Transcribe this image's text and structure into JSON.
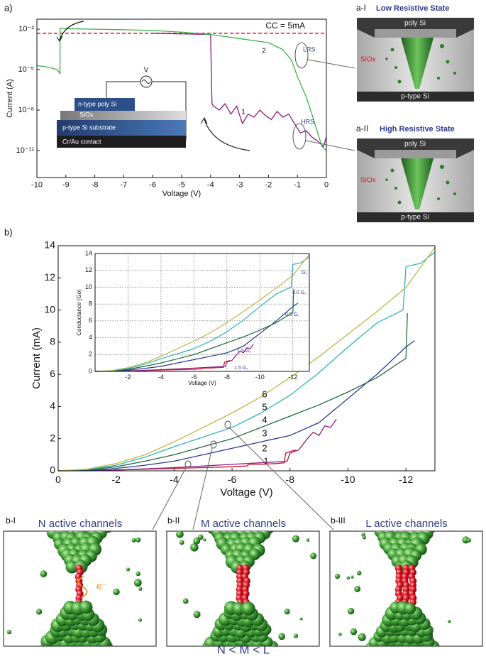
{
  "figure": {
    "panel_a_label": "a)",
    "panel_b_label": "b)"
  },
  "chart_data": [
    {
      "type": "line",
      "log_y": true,
      "xlabel": "Voltage (V)",
      "ylabel": "Current (A)",
      "xlim": [
        -10,
        0
      ],
      "xticks": [
        -10,
        -9,
        -8,
        -7,
        -6,
        -5,
        -4,
        -3,
        -2,
        -1,
        0
      ],
      "ylim": [
        1e-13,
        0.055
      ],
      "yticks": [
        {
          "value": 0.01,
          "label": "10⁻²"
        },
        {
          "value": 1e-05,
          "label": "10⁻⁵"
        },
        {
          "value": 1e-08,
          "label": "10⁻⁸"
        },
        {
          "value": 1e-11,
          "label": "10⁻¹¹"
        }
      ],
      "reference_line": {
        "label": "CC = 5mA",
        "value": 0.005,
        "color": "#e2263c"
      },
      "annotations": [
        "LRS",
        "HRS"
      ],
      "series": [
        {
          "name": "1",
          "color": "#8e1a7e",
          "x": [
            -6,
            -4,
            -3.95,
            -3.9,
            -3.7,
            -3.5,
            -3.3,
            -3.1,
            -2.9,
            -2.7,
            -2.5,
            -2.3,
            -2.1,
            -1.9,
            -1.7,
            -1.5,
            -1.3,
            -1.1,
            -0.9,
            -0.7,
            -0.5,
            -0.3,
            -0.1,
            0
          ],
          "values": [
            0.005,
            0.004,
            3e-08,
            2e-08,
            1e-08,
            3e-08,
            5e-09,
            2e-08,
            1e-09,
            5e-09,
            3e-09,
            1e-08,
            4e-09,
            2e-09,
            8e-09,
            3e-09,
            5e-09,
            1e-09,
            2e-10,
            3e-10,
            1e-10,
            5e-11,
            2e-11,
            1e-10
          ]
        },
        {
          "name": "2",
          "color": "#3bb24a",
          "x": [
            -10,
            -9.6,
            -9.3,
            -9.2,
            -9.2,
            -9,
            -8,
            -7,
            -6,
            -5,
            -4,
            -3,
            -2,
            -1.5,
            -1.2,
            -1,
            -0.7,
            -0.5,
            -0.3,
            -0.15,
            0
          ],
          "values": [
            2e-05,
            1.5e-05,
            1e-05,
            5e-06,
            0.012,
            0.011,
            0.01,
            0.009,
            0.008,
            0.006,
            0.004,
            0.002,
            0.001,
            0.0003,
            5e-05,
            3e-06,
            1e-07,
            5e-09,
            2e-10,
            2e-11,
            1e-11
          ]
        }
      ]
    },
    {
      "type": "line",
      "xlabel": "Voltage (V)",
      "ylabel": "Current (mA)",
      "xlim": [
        0,
        -13
      ],
      "xticks": [
        0,
        -2,
        -4,
        -6,
        -8,
        -10,
        -12
      ],
      "ylim": [
        0,
        14
      ],
      "yticks": [
        0,
        2,
        4,
        6,
        8,
        10,
        12,
        14
      ],
      "series": [
        {
          "name": "1",
          "color": "#d0102e",
          "x": [
            0,
            -2,
            -4,
            -6,
            -6.5,
            -6.6,
            -7,
            -7.5,
            -7.8,
            -7.85,
            -8,
            -8.2
          ],
          "values": [
            0,
            0.05,
            0.15,
            0.25,
            0.3,
            0.4,
            0.4,
            0.45,
            0.5,
            1.1,
            1.2,
            1.3
          ]
        },
        {
          "name": "2",
          "color": "#8e1a7e",
          "x": [
            0,
            -2,
            -4,
            -6,
            -7,
            -7.5,
            -7.9,
            -8,
            -8.3,
            -8.6,
            -8.8,
            -9,
            -9.2,
            -9.4,
            -9.6
          ],
          "values": [
            0,
            0.05,
            0.2,
            0.4,
            0.5,
            0.55,
            0.6,
            1.1,
            1.3,
            2,
            2.4,
            2.2,
            2.8,
            2.7,
            3.2
          ]
        },
        {
          "name": "3",
          "color": "#2b3990",
          "x": [
            0,
            -1,
            -2,
            -3,
            -4,
            -5,
            -6,
            -7,
            -8,
            -9,
            -10,
            -11,
            -12,
            -12.3
          ],
          "values": [
            0,
            0,
            0.15,
            0.35,
            0.6,
            1,
            1.4,
            1.8,
            2.2,
            3,
            4.5,
            6,
            7.7,
            8.1
          ]
        },
        {
          "name": "4",
          "color": "#1e6b3a",
          "x": [
            0,
            -1,
            -2,
            -3,
            -4,
            -5,
            -6,
            -7,
            -8,
            -9,
            -10,
            -11,
            -12,
            -12.05
          ],
          "values": [
            0,
            0.05,
            0.25,
            0.6,
            1,
            1.5,
            2,
            2.7,
            3.4,
            4.1,
            4.9,
            5.8,
            7,
            9.8
          ]
        },
        {
          "name": "5",
          "color": "#2fb4b4",
          "x": [
            0,
            -1,
            -2,
            -3,
            -4,
            -5,
            -6,
            -7,
            -8,
            -9,
            -10,
            -11,
            -11.9,
            -12,
            -12.5,
            -13
          ],
          "values": [
            0,
            0.08,
            0.35,
            0.85,
            1.5,
            2.1,
            2.7,
            3.6,
            4.7,
            6.1,
            7.7,
            9.2,
            10,
            12.7,
            12.9,
            13.6
          ]
        },
        {
          "name": "6",
          "color": "#bdb54a",
          "x": [
            0,
            -1,
            -2,
            -3,
            -4,
            -5,
            -6,
            -7,
            -8,
            -9,
            -10,
            -11,
            -12,
            -13
          ],
          "values": [
            0,
            0.1,
            0.45,
            1,
            1.8,
            2.7,
            3.6,
            4.6,
            5.8,
            7.1,
            8.5,
            9.9,
            11.4,
            13.9
          ]
        }
      ]
    },
    {
      "type": "line",
      "xlabel": "Voltage (V)",
      "ylabel": "Conductance (Go)",
      "grid": true,
      "xlim": [
        0,
        -13
      ],
      "xticks": [
        -2,
        -4,
        -6,
        -8,
        -10,
        -12
      ],
      "ylim": [
        0,
        14
      ],
      "yticks": [
        0,
        2,
        4,
        6,
        8,
        10,
        12,
        14
      ],
      "annotations": [
        "1.5 G₀",
        "1.5 G₀",
        "0.5 G₀",
        "3.0 G₀",
        "G₀"
      ],
      "series": [
        {
          "color": "#d0102e",
          "x": [
            0,
            -2,
            -4,
            -6,
            -6.5,
            -6.6,
            -7,
            -7.5,
            -7.8,
            -7.85,
            -8,
            -8.2
          ],
          "values": [
            0,
            0.05,
            0.15,
            0.25,
            0.3,
            0.4,
            0.4,
            0.45,
            0.5,
            1.1,
            1.2,
            1.3
          ]
        },
        {
          "color": "#8e1a7e",
          "x": [
            0,
            -2,
            -4,
            -6,
            -7,
            -7.5,
            -7.9,
            -8,
            -8.3,
            -8.6,
            -8.8,
            -9,
            -9.2,
            -9.4,
            -9.6
          ],
          "values": [
            0,
            0.05,
            0.2,
            0.4,
            0.5,
            0.55,
            0.6,
            1.1,
            1.3,
            2,
            2.4,
            2.2,
            2.8,
            2.7,
            3.2
          ]
        },
        {
          "color": "#2b3990",
          "x": [
            0,
            -1,
            -2,
            -3,
            -4,
            -5,
            -6,
            -7,
            -8,
            -9,
            -10,
            -11,
            -12,
            -12.3
          ],
          "values": [
            0,
            0,
            0.15,
            0.35,
            0.6,
            1,
            1.4,
            1.8,
            2.2,
            3,
            4.5,
            6,
            7.7,
            8.1
          ]
        },
        {
          "color": "#1e6b3a",
          "x": [
            0,
            -1,
            -2,
            -3,
            -4,
            -5,
            -6,
            -7,
            -8,
            -9,
            -10,
            -11,
            -12,
            -12.05
          ],
          "values": [
            0,
            0.05,
            0.25,
            0.6,
            1,
            1.5,
            2,
            2.7,
            3.4,
            4.1,
            4.9,
            5.8,
            7,
            9.8
          ]
        },
        {
          "color": "#2fb4b4",
          "x": [
            0,
            -1,
            -2,
            -3,
            -4,
            -5,
            -6,
            -7,
            -8,
            -9,
            -10,
            -11,
            -11.9,
            -12,
            -12.5,
            -13
          ],
          "values": [
            0,
            0.08,
            0.35,
            0.85,
            1.5,
            2.1,
            2.7,
            3.6,
            4.7,
            6.1,
            7.7,
            9.2,
            10,
            12.7,
            12.9,
            13.6
          ]
        },
        {
          "color": "#bdb54a",
          "x": [
            0,
            -1,
            -2,
            -3,
            -4,
            -5,
            -6,
            -7,
            -8,
            -9,
            -10,
            -11,
            -12,
            -13
          ],
          "values": [
            0,
            0.1,
            0.45,
            1,
            1.8,
            2.7,
            3.6,
            4.6,
            5.8,
            7.1,
            8.5,
            9.9,
            11.4,
            13.9
          ]
        }
      ]
    }
  ],
  "device": {
    "layers": [
      "n-type poly Si",
      "SiOx",
      "p-type Si substrate",
      "Cr/Au contact"
    ],
    "source": "V"
  },
  "states": [
    {
      "tag": "a-I",
      "title": "Low Resistive State",
      "top": "poly Si",
      "middle": "SiOx",
      "bottom": "p-type Si"
    },
    {
      "tag": "a-II",
      "title": "High Resistive State",
      "top": "poly Si",
      "middle": "SiOx",
      "bottom": "p-type Si"
    }
  ],
  "channels": [
    {
      "tag": "b-I",
      "title": "N active channels",
      "electron": "e⁻"
    },
    {
      "tag": "b-II",
      "title": "M active channels"
    },
    {
      "tag": "b-III",
      "title": "L active channels"
    }
  ],
  "relation": "N < M < L"
}
